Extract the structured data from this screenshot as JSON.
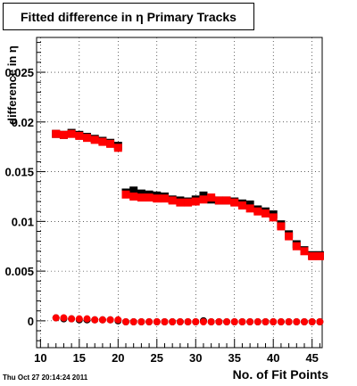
{
  "title": "Fitted difference in  η Primary Tracks",
  "timestamp": "Thu Oct 27 20:14:24 2011",
  "chart_data": {
    "type": "scatter",
    "title": "Fitted difference in  η Primary Tracks",
    "xlabel": "No. of Fit Points",
    "ylabel": "difference in η",
    "xlim": [
      9.5,
      46.3
    ],
    "ylim": [
      -0.0027,
      0.0285
    ],
    "xticks": [
      10,
      15,
      20,
      25,
      30,
      35,
      40,
      45
    ],
    "yticks": [
      0,
      0.005,
      0.01,
      0.015,
      0.02,
      0.025
    ],
    "ytick_labels": [
      "0",
      "0.005",
      "0.01",
      "0.015",
      "0.02",
      "0.025"
    ],
    "grid": true,
    "series": [
      {
        "name": "",
        "color": "#000000",
        "marker": "square",
        "points": [
          [
            12,
            0.0188
          ],
          [
            13,
            0.0187
          ],
          [
            14,
            0.0189
          ],
          [
            15,
            0.0187
          ],
          [
            16,
            0.0185
          ],
          [
            17,
            0.0183
          ],
          [
            18,
            0.0181
          ],
          [
            19,
            0.0179
          ],
          [
            20,
            0.0176
          ],
          [
            21,
            0.0129
          ],
          [
            22,
            0.0131
          ],
          [
            23,
            0.0128
          ],
          [
            24,
            0.0127
          ],
          [
            25,
            0.0126
          ],
          [
            26,
            0.0125
          ],
          [
            27,
            0.0122
          ],
          [
            28,
            0.0121
          ],
          [
            29,
            0.012
          ],
          [
            30,
            0.0122
          ],
          [
            31,
            0.0126
          ],
          [
            32,
            0.0122
          ],
          [
            33,
            0.0121
          ],
          [
            34,
            0.0121
          ],
          [
            35,
            0.012
          ],
          [
            36,
            0.0118
          ],
          [
            37,
            0.0117
          ],
          [
            38,
            0.0112
          ],
          [
            39,
            0.011
          ],
          [
            40,
            0.0107
          ],
          [
            41,
            0.0097
          ],
          [
            42,
            0.0087
          ],
          [
            43,
            0.0077
          ],
          [
            44,
            0.0071
          ],
          [
            45,
            0.0066
          ],
          [
            46,
            0.0066
          ]
        ]
      },
      {
        "name": "",
        "color": "#ff0000",
        "marker": "square",
        "points": [
          [
            12,
            0.0188
          ],
          [
            13,
            0.0187
          ],
          [
            14,
            0.0188
          ],
          [
            15,
            0.0186
          ],
          [
            16,
            0.0184
          ],
          [
            17,
            0.0182
          ],
          [
            18,
            0.018
          ],
          [
            19,
            0.0178
          ],
          [
            20,
            0.0174
          ],
          [
            21,
            0.0127
          ],
          [
            22,
            0.0125
          ],
          [
            23,
            0.0124
          ],
          [
            24,
            0.0124
          ],
          [
            25,
            0.0123
          ],
          [
            26,
            0.0123
          ],
          [
            27,
            0.0121
          ],
          [
            28,
            0.0119
          ],
          [
            29,
            0.0119
          ],
          [
            30,
            0.012
          ],
          [
            31,
            0.0122
          ],
          [
            32,
            0.0124
          ],
          [
            33,
            0.0121
          ],
          [
            34,
            0.0121
          ],
          [
            35,
            0.0119
          ],
          [
            36,
            0.0116
          ],
          [
            37,
            0.0113
          ],
          [
            38,
            0.011
          ],
          [
            39,
            0.0108
          ],
          [
            40,
            0.0104
          ],
          [
            41,
            0.0095
          ],
          [
            42,
            0.0085
          ],
          [
            43,
            0.0075
          ],
          [
            44,
            0.007
          ],
          [
            45,
            0.0065
          ],
          [
            46,
            0.0065
          ]
        ]
      },
      {
        "name": "",
        "color": "#000000",
        "marker": "circle",
        "points": [
          [
            12,
            0.0003
          ],
          [
            13,
            0.0002
          ],
          [
            14,
            0.0002
          ],
          [
            15,
            0.0001
          ],
          [
            16,
            0.0001
          ],
          [
            17,
            0.0001
          ],
          [
            18,
            0.0001
          ],
          [
            19,
            0.0001
          ],
          [
            20,
            0.0
          ],
          [
            21,
            -0.0001
          ],
          [
            22,
            -0.0001
          ],
          [
            23,
            -0.0001
          ],
          [
            24,
            -0.0001
          ],
          [
            25,
            -0.0001
          ],
          [
            26,
            -0.0001
          ],
          [
            27,
            -0.0001
          ],
          [
            28,
            -0.0001
          ],
          [
            29,
            -0.0001
          ],
          [
            30,
            -0.0001
          ],
          [
            31,
            0.0
          ],
          [
            32,
            -0.0001
          ],
          [
            33,
            -0.0001
          ],
          [
            34,
            -0.0001
          ],
          [
            35,
            -0.0001
          ],
          [
            36,
            -0.0001
          ],
          [
            37,
            -0.0001
          ],
          [
            38,
            -0.0001
          ],
          [
            39,
            -0.0001
          ],
          [
            40,
            -0.0001
          ],
          [
            41,
            -0.0001
          ],
          [
            42,
            -0.0001
          ],
          [
            43,
            -0.0001
          ],
          [
            44,
            -0.0001
          ],
          [
            45,
            -0.0001
          ],
          [
            46,
            -0.0001
          ]
        ]
      },
      {
        "name": "",
        "color": "#ff0000",
        "marker": "circle",
        "points": [
          [
            12,
            0.0003
          ],
          [
            13,
            0.0003
          ],
          [
            14,
            0.0002
          ],
          [
            15,
            0.0002
          ],
          [
            16,
            0.0002
          ],
          [
            17,
            0.0001
          ],
          [
            18,
            0.0001
          ],
          [
            19,
            0.0001
          ],
          [
            20,
            0.0001
          ],
          [
            21,
            -0.0001
          ],
          [
            22,
            -0.0001
          ],
          [
            23,
            -0.0001
          ],
          [
            24,
            -0.0001
          ],
          [
            25,
            -0.0001
          ],
          [
            26,
            -0.0001
          ],
          [
            27,
            -0.0001
          ],
          [
            28,
            -0.0001
          ],
          [
            29,
            -0.0001
          ],
          [
            30,
            -0.0001
          ],
          [
            31,
            -0.0001
          ],
          [
            32,
            -0.0001
          ],
          [
            33,
            -0.0001
          ],
          [
            34,
            -0.0001
          ],
          [
            35,
            -0.0001
          ],
          [
            36,
            -0.0001
          ],
          [
            37,
            -0.0001
          ],
          [
            38,
            -0.0001
          ],
          [
            39,
            -0.0001
          ],
          [
            40,
            -0.0001
          ],
          [
            41,
            -0.0001
          ],
          [
            42,
            -0.0001
          ],
          [
            43,
            -0.0001
          ],
          [
            44,
            -0.0001
          ],
          [
            45,
            -0.0001
          ],
          [
            46,
            -0.0001
          ]
        ]
      }
    ]
  }
}
